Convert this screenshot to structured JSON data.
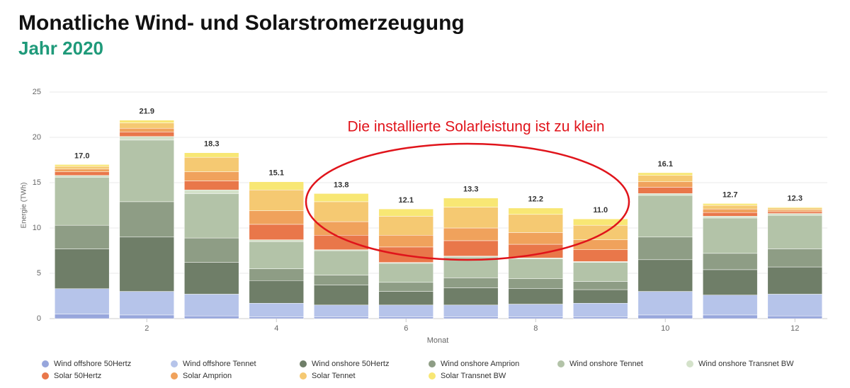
{
  "chart_data": {
    "type": "stacked-bar",
    "title": "Monatliche Wind- und Solarstromerzeugung",
    "subtitle": "Jahr 2020",
    "annotation": "Die installierte Solarleistung ist zu klein",
    "y_label": "Energie (TWh)",
    "x_label": "Monat",
    "categories": [
      null,
      2,
      null,
      4,
      null,
      6,
      null,
      8,
      null,
      10,
      null,
      12
    ],
    "ylim": [
      0,
      25
    ],
    "yticks": [
      0,
      5,
      10,
      15,
      20,
      25
    ],
    "grid": true,
    "totals": [
      17,
      21.9,
      18.3,
      15.1,
      13.8,
      12.1,
      13.3,
      12.2,
      11,
      16.1,
      12.7,
      12.3
    ],
    "total_labels": [
      "17.0",
      "21.9",
      "18.3",
      "15.1",
      "13.8",
      "12.1",
      "13.3",
      "12.2",
      "11.0",
      "16.1",
      "12.7",
      "12.3"
    ],
    "series": [
      {
        "name": "Wind offshore 50Hertz",
        "color": "#97a6dc",
        "values": [
          0.5,
          0.4,
          0.3,
          0.2,
          0.2,
          0.2,
          0.2,
          0.2,
          0.2,
          0.4,
          0.4,
          0.3
        ]
      },
      {
        "name": "Wind offshore Tennet",
        "color": "#b6c4ea",
        "values": [
          2.8,
          2.6,
          2.4,
          1.5,
          1.3,
          1.3,
          1.3,
          1.4,
          1.5,
          2.6,
          2.2,
          2.4
        ]
      },
      {
        "name": "Wind onshore 50Hertz",
        "color": "#6f7e68",
        "values": [
          4.4,
          6.0,
          3.5,
          2.5,
          2.2,
          1.5,
          1.9,
          1.7,
          1.5,
          3.5,
          2.8,
          3.0
        ]
      },
      {
        "name": "Wind onshore Amprion",
        "color": "#8e9d85",
        "values": [
          2.6,
          3.9,
          2.7,
          1.3,
          1.1,
          1.0,
          1.1,
          1.1,
          0.9,
          2.5,
          1.8,
          2.0
        ]
      },
      {
        "name": "Wind onshore Tennet",
        "color": "#b3c3a8",
        "values": [
          5.3,
          6.8,
          4.9,
          3.0,
          2.7,
          2.1,
          2.3,
          2.2,
          2.1,
          4.6,
          3.9,
          3.7
        ]
      },
      {
        "name": "Wind onshore Transnet BW",
        "color": "#d4e2ca",
        "values": [
          0.2,
          0.4,
          0.4,
          0.2,
          0.1,
          0.1,
          0.1,
          0.1,
          0.1,
          0.2,
          0.2,
          0.2
        ]
      },
      {
        "name": "Solar 50Hertz",
        "color": "#e9774a",
        "values": [
          0.4,
          0.5,
          1.0,
          1.7,
          1.6,
          1.7,
          1.7,
          1.5,
          1.3,
          0.7,
          0.4,
          0.2
        ]
      },
      {
        "name": "Solar Amprion",
        "color": "#f0a25c",
        "values": [
          0.3,
          0.4,
          1.0,
          1.5,
          1.5,
          1.3,
          1.4,
          1.3,
          1.1,
          0.6,
          0.4,
          0.2
        ]
      },
      {
        "name": "Solar Tennet",
        "color": "#f5c972",
        "values": [
          0.3,
          0.6,
          1.6,
          2.3,
          2.2,
          2.1,
          2.3,
          2.0,
          1.6,
          0.7,
          0.4,
          0.2
        ]
      },
      {
        "name": "Solar Transnet BW",
        "color": "#f8e774",
        "values": [
          0.2,
          0.3,
          0.5,
          0.9,
          0.9,
          0.8,
          1.0,
          0.7,
          0.7,
          0.3,
          0.2,
          0.1
        ]
      }
    ]
  }
}
